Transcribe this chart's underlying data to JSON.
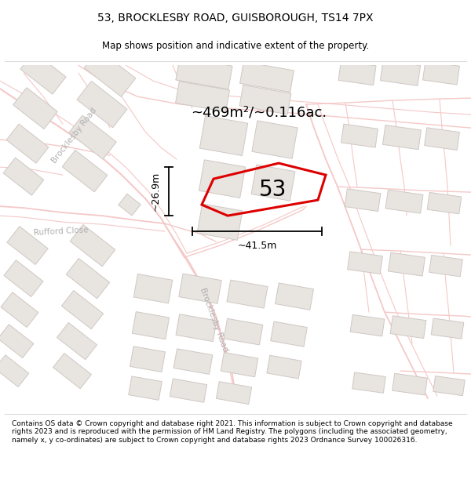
{
  "title_line1": "53, BROCKLESBY ROAD, GUISBOROUGH, TS14 7PX",
  "title_line2": "Map shows position and indicative extent of the property.",
  "area_text": "~469m²/~0.116ac.",
  "plot_number": "53",
  "dim_width": "~41.5m",
  "dim_height": "~26.9m",
  "footer_text": "Contains OS data © Crown copyright and database right 2021. This information is subject to Crown copyright and database rights 2023 and is reproduced with the permission of HM Land Registry. The polygons (including the associated geometry, namely x, y co-ordinates) are subject to Crown copyright and database rights 2023 Ordnance Survey 100026316.",
  "map_bg": "#f9f8f7",
  "road_color": "#f5c8c8",
  "building_fill": "#e8e4e0",
  "building_edge": "#d0c8c4",
  "plot_stroke": "#dd0000",
  "plot_fill": "none",
  "text_color": "#333333",
  "label_color": "#aaaaaa",
  "street_label_brocklesby_upper": "Brocklesby Road",
  "street_label_brocklesby_lower": "Brocklesby Road",
  "street_label_rufford": "Rufford Close"
}
